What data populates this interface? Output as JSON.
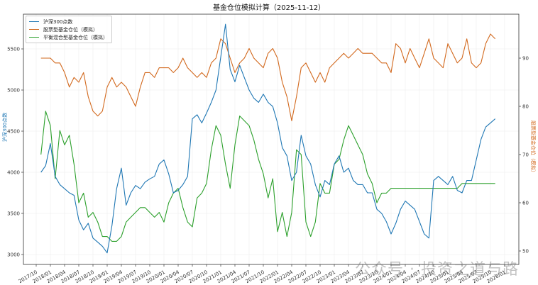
{
  "title": "基金仓位模拟计算（2025-11-12）",
  "legend": [
    {
      "label": "沪深300点数",
      "color": "#1f77b4"
    },
    {
      "label": "股票型基金仓位（模拟）",
      "color": "#d2691e"
    },
    {
      "label": "平衡混合型基金仓位（模拟）",
      "color": "#2ca02c"
    }
  ],
  "watermark": "公众号 · 投资之道与路",
  "chart_data": {
    "type": "line",
    "title": "基金仓位模拟计算（2025-11-12）",
    "xlabel": "",
    "ylabel_left": "沪深300点数",
    "ylabel_right": "股票型基金仓位（模拟）",
    "ylim_left": [
      2950,
      5800
    ],
    "ylim_right": [
      49,
      98
    ],
    "yticks_left": [
      3000,
      3500,
      4000,
      4500,
      5000,
      5500
    ],
    "yticks_right": [
      50,
      60,
      70,
      80,
      90
    ],
    "xticks": [
      "2017/10",
      "2018/01",
      "2018/04",
      "2018/07",
      "2018/10",
      "2019/01",
      "2019/04",
      "2019/07",
      "2019/10",
      "2020/01",
      "2020/04",
      "2020/07",
      "2020/10",
      "2021/01",
      "2021/04",
      "2021/07",
      "2021/10",
      "2022/01",
      "2022/04",
      "2022/07",
      "2022/10",
      "2023/01",
      "2023/04",
      "2023/07",
      "2023/10",
      "2024/01",
      "2024/04",
      "2024/07",
      "2024/10",
      "2025/01",
      "2025/04",
      "2025/07",
      "2025/10",
      "2026/01"
    ],
    "grid": true,
    "legend_position": "upper left",
    "x": [
      "2017/11",
      "2017/12",
      "2018/01",
      "2018/02",
      "2018/03",
      "2018/04",
      "2018/05",
      "2018/06",
      "2018/07",
      "2018/08",
      "2018/09",
      "2018/10",
      "2018/11",
      "2018/12",
      "2019/01",
      "2019/02",
      "2019/03",
      "2019/04",
      "2019/05",
      "2019/06",
      "2019/07",
      "2019/08",
      "2019/09",
      "2019/10",
      "2019/11",
      "2019/12",
      "2020/01",
      "2020/02",
      "2020/03",
      "2020/04",
      "2020/05",
      "2020/06",
      "2020/07",
      "2020/08",
      "2020/09",
      "2020/10",
      "2020/11",
      "2020/12",
      "2021/01",
      "2021/02",
      "2021/03",
      "2021/04",
      "2021/05",
      "2021/06",
      "2021/07",
      "2021/08",
      "2021/09",
      "2021/10",
      "2021/11",
      "2021/12",
      "2022/01",
      "2022/02",
      "2022/03",
      "2022/04",
      "2022/05",
      "2022/06",
      "2022/07",
      "2022/08",
      "2022/09",
      "2022/10",
      "2022/11",
      "2022/12",
      "2023/01",
      "2023/02",
      "2023/03",
      "2023/04",
      "2023/05",
      "2023/06",
      "2023/07",
      "2023/08",
      "2023/09",
      "2023/10",
      "2023/11",
      "2023/12",
      "2024/01",
      "2024/02",
      "2024/03",
      "2024/04",
      "2024/05",
      "2024/06",
      "2024/07",
      "2024/08",
      "2024/09",
      "2024/10",
      "2024/11",
      "2024/12",
      "2025/01",
      "2025/02",
      "2025/03",
      "2025/04",
      "2025/05",
      "2025/06",
      "2025/07",
      "2025/08",
      "2025/09",
      "2025/10",
      "2025/11"
    ],
    "series": [
      {
        "name": "沪深300点数",
        "axis": "left",
        "color": "#1f77b4",
        "values": [
          4000,
          4080,
          4350,
          3950,
          3850,
          3800,
          3750,
          3720,
          3420,
          3300,
          3380,
          3200,
          3150,
          3100,
          3020,
          3350,
          3800,
          4050,
          3600,
          3750,
          3840,
          3800,
          3880,
          3920,
          3950,
          4100,
          4150,
          3980,
          3750,
          3780,
          3850,
          3950,
          4650,
          4700,
          4600,
          4720,
          4850,
          5000,
          5400,
          5800,
          5250,
          5100,
          5300,
          5150,
          5000,
          4900,
          4850,
          4950,
          4850,
          4800,
          4600,
          4300,
          4200,
          3900,
          4000,
          4450,
          4200,
          4100,
          3850,
          3700,
          3900,
          3850,
          4100,
          4200,
          4000,
          4050,
          3900,
          3850,
          3850,
          3750,
          3750,
          3550,
          3500,
          3400,
          3250,
          3380,
          3550,
          3650,
          3600,
          3550,
          3400,
          3250,
          3200,
          3900,
          3950,
          3900,
          3850,
          3950,
          3780,
          3750,
          3900,
          3900,
          4150,
          4400,
          4550,
          4600,
          4650
        ]
      },
      {
        "name": "股票型基金仓位（模拟）",
        "axis": "right",
        "color": "#d2691e",
        "values": [
          90,
          90,
          90,
          89,
          89,
          87,
          84,
          86,
          85,
          87,
          82,
          79,
          78,
          79,
          84,
          86,
          84,
          85,
          84,
          82,
          80,
          84,
          87,
          87,
          86,
          88,
          88,
          88,
          87,
          88,
          90,
          88,
          87,
          86,
          87,
          86,
          89,
          90,
          94,
          93,
          90,
          87,
          89,
          90,
          92,
          90,
          89,
          88,
          91,
          92,
          90,
          85,
          82,
          77,
          82,
          88,
          89,
          87,
          85,
          87,
          85,
          88,
          89,
          90,
          91,
          90,
          91,
          92,
          91,
          91,
          91,
          90,
          89,
          89,
          87,
          93,
          92,
          89,
          92,
          90,
          88,
          91,
          94,
          90,
          89,
          88,
          93,
          91,
          89,
          90,
          94,
          89,
          88,
          89,
          93,
          95,
          94
        ]
      },
      {
        "name": "平衡混合型基金仓位（模拟）",
        "axis": "right",
        "color": "#2ca02c",
        "values": [
          70,
          79,
          76,
          65,
          75,
          72,
          74,
          68,
          60,
          62,
          57,
          58,
          56,
          53,
          53,
          52,
          52,
          53,
          56,
          57,
          58,
          59,
          59,
          58,
          57,
          58,
          56,
          60,
          62,
          63,
          59,
          56,
          55,
          61,
          62,
          64,
          71,
          76,
          74,
          68,
          63,
          72,
          78,
          77,
          76,
          73,
          69,
          66,
          61,
          65,
          54,
          58,
          53,
          58,
          71,
          70,
          56,
          53,
          56,
          64,
          62,
          62,
          68,
          69,
          73,
          76,
          74,
          72,
          70,
          66,
          64,
          60,
          62,
          62,
          63,
          63,
          63,
          63,
          63,
          63,
          63,
          63,
          63,
          63,
          63,
          63,
          63,
          63,
          63,
          64,
          64,
          64,
          64,
          64,
          64,
          64,
          64
        ]
      }
    ]
  }
}
